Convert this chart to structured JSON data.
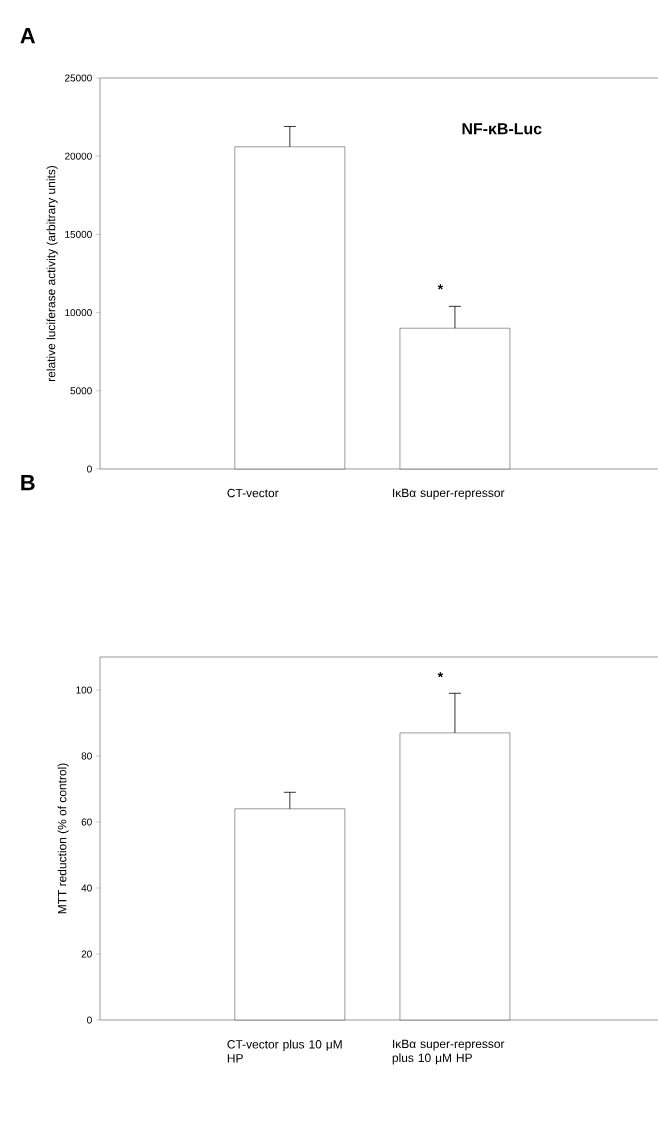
{
  "chart_data": [
    {
      "type": "bar",
      "title": "A",
      "ylabel": "relative luciferase activity (arbitrary units)",
      "categories": [
        "CT-vector",
        "IκBα super-repressor"
      ],
      "values": [
        20600,
        9000
      ],
      "errors": [
        1300,
        1400
      ],
      "color": "#ffffff",
      "ylim": [
        0,
        25000
      ],
      "yticks": [
        0,
        5000,
        10000,
        15000,
        20000,
        25000
      ],
      "grid": false,
      "annotations": [
        "**NF-κB-Luc**",
        "*"
      ]
    },
    {
      "type": "bar",
      "title": "B",
      "ylabel": "MTT reduction (% of control)",
      "categories": [
        "CT-vector plus 10 μM HP",
        "IκBα super-repressor plus 10 μM HP"
      ],
      "values": [
        64,
        87
      ],
      "errors": [
        5,
        12
      ],
      "color": "#ffffff",
      "ylim": [
        0,
        110
      ],
      "yticks": [
        0,
        20,
        40,
        60,
        80,
        100
      ],
      "grid": false,
      "annotations": [
        "*"
      ]
    }
  ]
}
